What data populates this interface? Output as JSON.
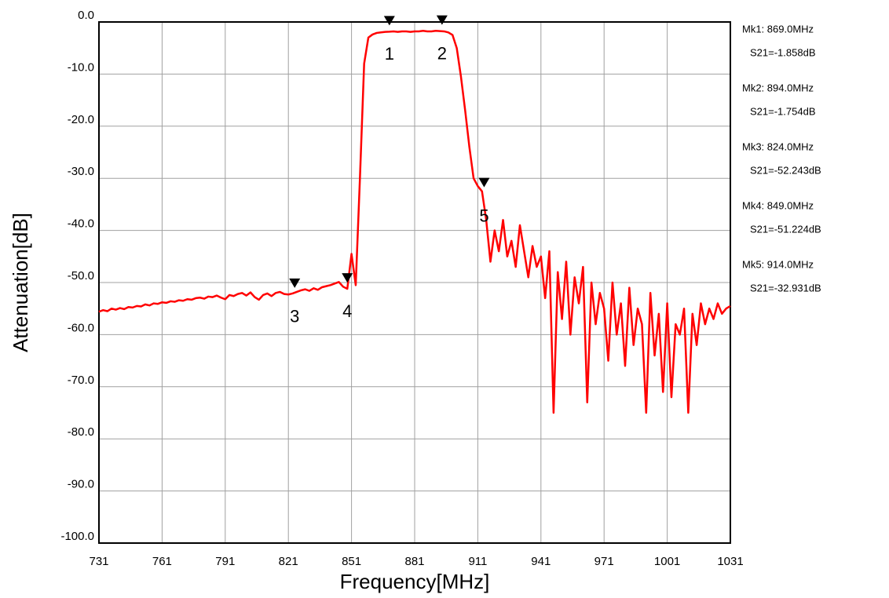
{
  "chart_data": {
    "type": "line",
    "x_label": "Frequency[MHz]",
    "y_label": "Attenuation[dB]",
    "color": "#ff0000",
    "grid": true,
    "xlim": [
      731,
      1031
    ],
    "xticks": [
      731,
      761,
      791,
      821,
      851,
      881,
      911,
      941,
      971,
      1001,
      1031
    ],
    "ylim": [
      -100,
      0
    ],
    "yticks": [
      {
        "value": 0,
        "label": "0.0"
      },
      {
        "value": -10,
        "label": "-10.0"
      },
      {
        "value": -20,
        "label": "-20.0"
      },
      {
        "value": -30,
        "label": "-30.0"
      },
      {
        "value": -40,
        "label": "-40.0"
      },
      {
        "value": -50,
        "label": "-50.0"
      },
      {
        "value": -60,
        "label": "-60.0"
      },
      {
        "value": -70,
        "label": "-70.0"
      },
      {
        "value": -80,
        "label": "-80.0"
      },
      {
        "value": -90,
        "label": "-90.0"
      },
      {
        "value": -100,
        "label": "-100.0"
      }
    ],
    "x": [
      731,
      733,
      735,
      737,
      739,
      741,
      743,
      745,
      747,
      749,
      751,
      753,
      755,
      757,
      759,
      761,
      763,
      765,
      767,
      769,
      771,
      773,
      775,
      777,
      779,
      781,
      783,
      785,
      787,
      789,
      791,
      793,
      795,
      797,
      799,
      801,
      803,
      805,
      807,
      809,
      811,
      813,
      815,
      817,
      819,
      821,
      823,
      825,
      827,
      829,
      831,
      833,
      835,
      837,
      839,
      841,
      843,
      845,
      847,
      849,
      851,
      853,
      855,
      857,
      859,
      861,
      863,
      865,
      867,
      869,
      871,
      873,
      875,
      877,
      879,
      881,
      883,
      885,
      887,
      889,
      891,
      893,
      895,
      897,
      899,
      901,
      903,
      905,
      907,
      909,
      911,
      913,
      915,
      917,
      919,
      921,
      923,
      925,
      927,
      929,
      931,
      933,
      935,
      937,
      939,
      941,
      943,
      945,
      947,
      949,
      951,
      953,
      955,
      957,
      959,
      961,
      963,
      965,
      967,
      969,
      971,
      973,
      975,
      977,
      979,
      981,
      983,
      985,
      987,
      989,
      991,
      993,
      995,
      997,
      999,
      1001,
      1003,
      1005,
      1007,
      1009,
      1011,
      1013,
      1015,
      1017,
      1019,
      1021,
      1023,
      1025,
      1027,
      1029,
      1031
    ],
    "values": [
      -55.6,
      -55.3,
      -55.5,
      -55.0,
      -55.2,
      -54.9,
      -55.1,
      -54.7,
      -54.8,
      -54.5,
      -54.6,
      -54.2,
      -54.4,
      -54.0,
      -54.1,
      -53.8,
      -53.9,
      -53.6,
      -53.7,
      -53.4,
      -53.5,
      -53.2,
      -53.3,
      -53.0,
      -52.9,
      -53.1,
      -52.7,
      -52.8,
      -52.5,
      -52.9,
      -53.2,
      -52.4,
      -52.6,
      -52.2,
      -52.0,
      -52.5,
      -51.9,
      -52.8,
      -53.3,
      -52.4,
      -52.1,
      -52.6,
      -52.0,
      -51.8,
      -52.2,
      -52.3,
      -52.1,
      -51.8,
      -51.5,
      -51.3,
      -51.6,
      -51.1,
      -51.4,
      -50.9,
      -50.7,
      -50.5,
      -50.2,
      -49.9,
      -50.8,
      -51.2,
      -44.5,
      -50.5,
      -30,
      -8,
      -3.0,
      -2.4,
      -2.1,
      -2.0,
      -1.9,
      -1.86,
      -1.8,
      -1.9,
      -1.8,
      -1.8,
      -1.9,
      -1.8,
      -1.8,
      -1.7,
      -1.8,
      -1.8,
      -1.7,
      -1.75,
      -1.8,
      -2.0,
      -2.5,
      -5.0,
      -10.5,
      -17,
      -24,
      -30,
      -31.5,
      -32.5,
      -38,
      -46,
      -40,
      -44,
      -38,
      -45,
      -42,
      -47,
      -39,
      -44,
      -49,
      -43,
      -47,
      -45,
      -53,
      -44,
      -75,
      -48,
      -57,
      -46,
      -60,
      -49,
      -54,
      -47,
      -73,
      -50,
      -58,
      -52,
      -55,
      -65,
      -50,
      -60,
      -54,
      -66,
      -51,
      -62,
      -55,
      -58,
      -75,
      -52,
      -64,
      -56,
      -71,
      -54,
      -72,
      -58,
      -60,
      -55,
      -75,
      -56,
      -62,
      -54,
      -58,
      -55,
      -57,
      -54,
      -56,
      -55,
      -54.5
    ],
    "markers": [
      {
        "label": "1",
        "x": 869,
        "y": -1.858,
        "x_text": "Mk1:  869.0MHz",
        "y_text": "S21=-1.858dB"
      },
      {
        "label": "2",
        "x": 894,
        "y": -1.754,
        "x_text": "Mk2:  894.0MHz",
        "y_text": "S21=-1.754dB"
      },
      {
        "label": "3",
        "x": 824,
        "y": -52.243,
        "x_text": "Mk3:  824.0MHz",
        "y_text": "S21=-52.243dB"
      },
      {
        "label": "4",
        "x": 849,
        "y": -51.224,
        "x_text": "Mk4:  849.0MHz",
        "y_text": "S21=-51.224dB"
      },
      {
        "label": "5",
        "x": 914,
        "y": -32.931,
        "x_text": "Mk5:  914.0MHz",
        "y_text": "S21=-32.931dB"
      }
    ]
  }
}
